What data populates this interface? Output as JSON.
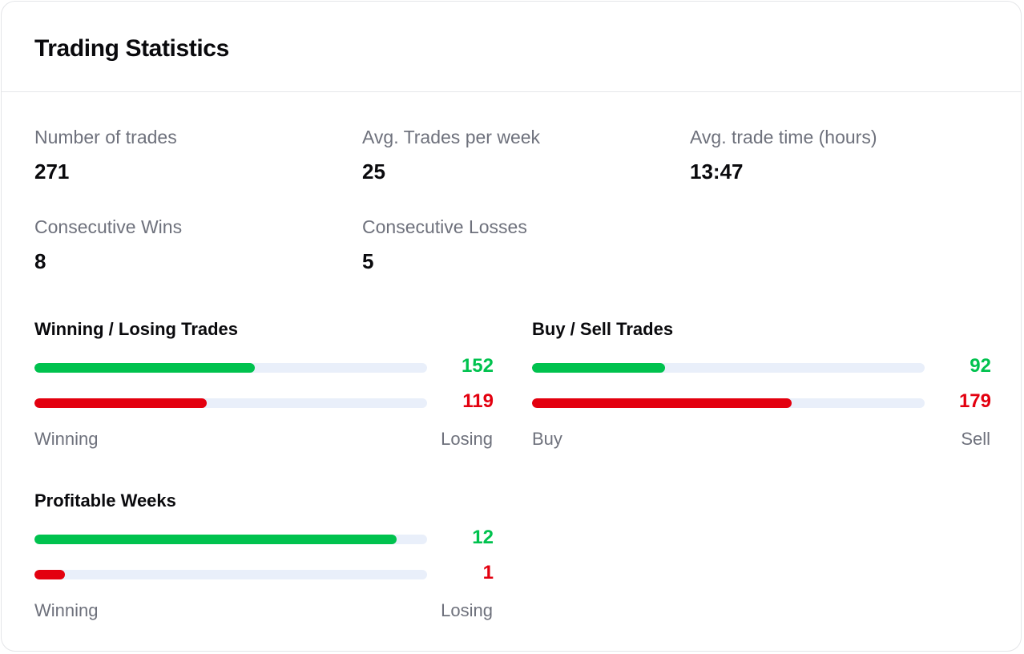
{
  "title": "Trading Statistics",
  "colors": {
    "positive": "#00c24e",
    "negative": "#e3000f",
    "track": "#e9effa"
  },
  "stats": {
    "number_of_trades": {
      "label": "Number of trades",
      "value": "271"
    },
    "avg_trades_per_week": {
      "label": "Avg. Trades per week",
      "value": "25"
    },
    "avg_trade_time": {
      "label": "Avg. trade time (hours)",
      "value": "13:47"
    },
    "consecutive_wins": {
      "label": "Consecutive Wins",
      "value": "8"
    },
    "consecutive_losses": {
      "label": "Consecutive Losses",
      "value": "5"
    }
  },
  "winning_losing": {
    "title": "Winning / Losing Trades",
    "top": {
      "value": "152",
      "fraction": 0.561
    },
    "bottom": {
      "value": "119",
      "fraction": 0.439
    },
    "left_label": "Winning",
    "right_label": "Losing"
  },
  "buy_sell": {
    "title": "Buy / Sell Trades",
    "top": {
      "value": "92",
      "fraction": 0.339
    },
    "bottom": {
      "value": "179",
      "fraction": 0.661
    },
    "left_label": "Buy",
    "right_label": "Sell"
  },
  "profitable_weeks": {
    "title": "Profitable Weeks",
    "top": {
      "value": "12",
      "fraction": 0.923
    },
    "bottom": {
      "value": "1",
      "fraction": 0.077
    },
    "left_label": "Winning",
    "right_label": "Losing"
  }
}
